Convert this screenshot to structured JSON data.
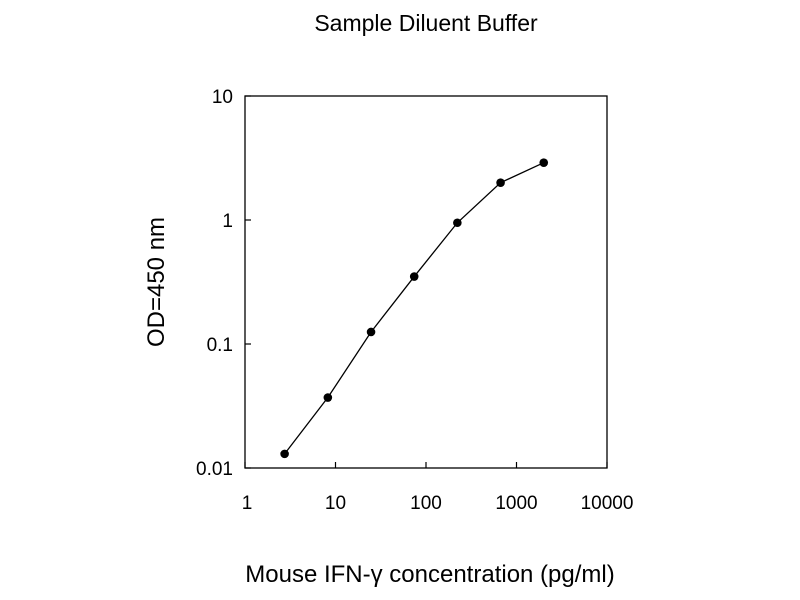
{
  "chart_data": {
    "type": "line",
    "title": "Sample Diluent Buffer",
    "xlabel": "Mouse IFN-γ concentration (pg/ml)",
    "ylabel": "OD=450 nm",
    "x_scale": "log",
    "y_scale": "log",
    "xlim": [
      1,
      10000
    ],
    "ylim": [
      0.01,
      10
    ],
    "x_ticks": [
      "1",
      "10",
      "100",
      "1000",
      "10000"
    ],
    "y_ticks": [
      "10",
      "1",
      "0.1",
      "0.01"
    ],
    "grid": false,
    "series": [
      {
        "x": [
          2.74,
          8.23,
          24.7,
          74.1,
          222,
          667,
          2000
        ],
        "y": [
          0.013,
          0.037,
          0.125,
          0.35,
          0.95,
          2.0,
          2.9
        ]
      }
    ]
  }
}
